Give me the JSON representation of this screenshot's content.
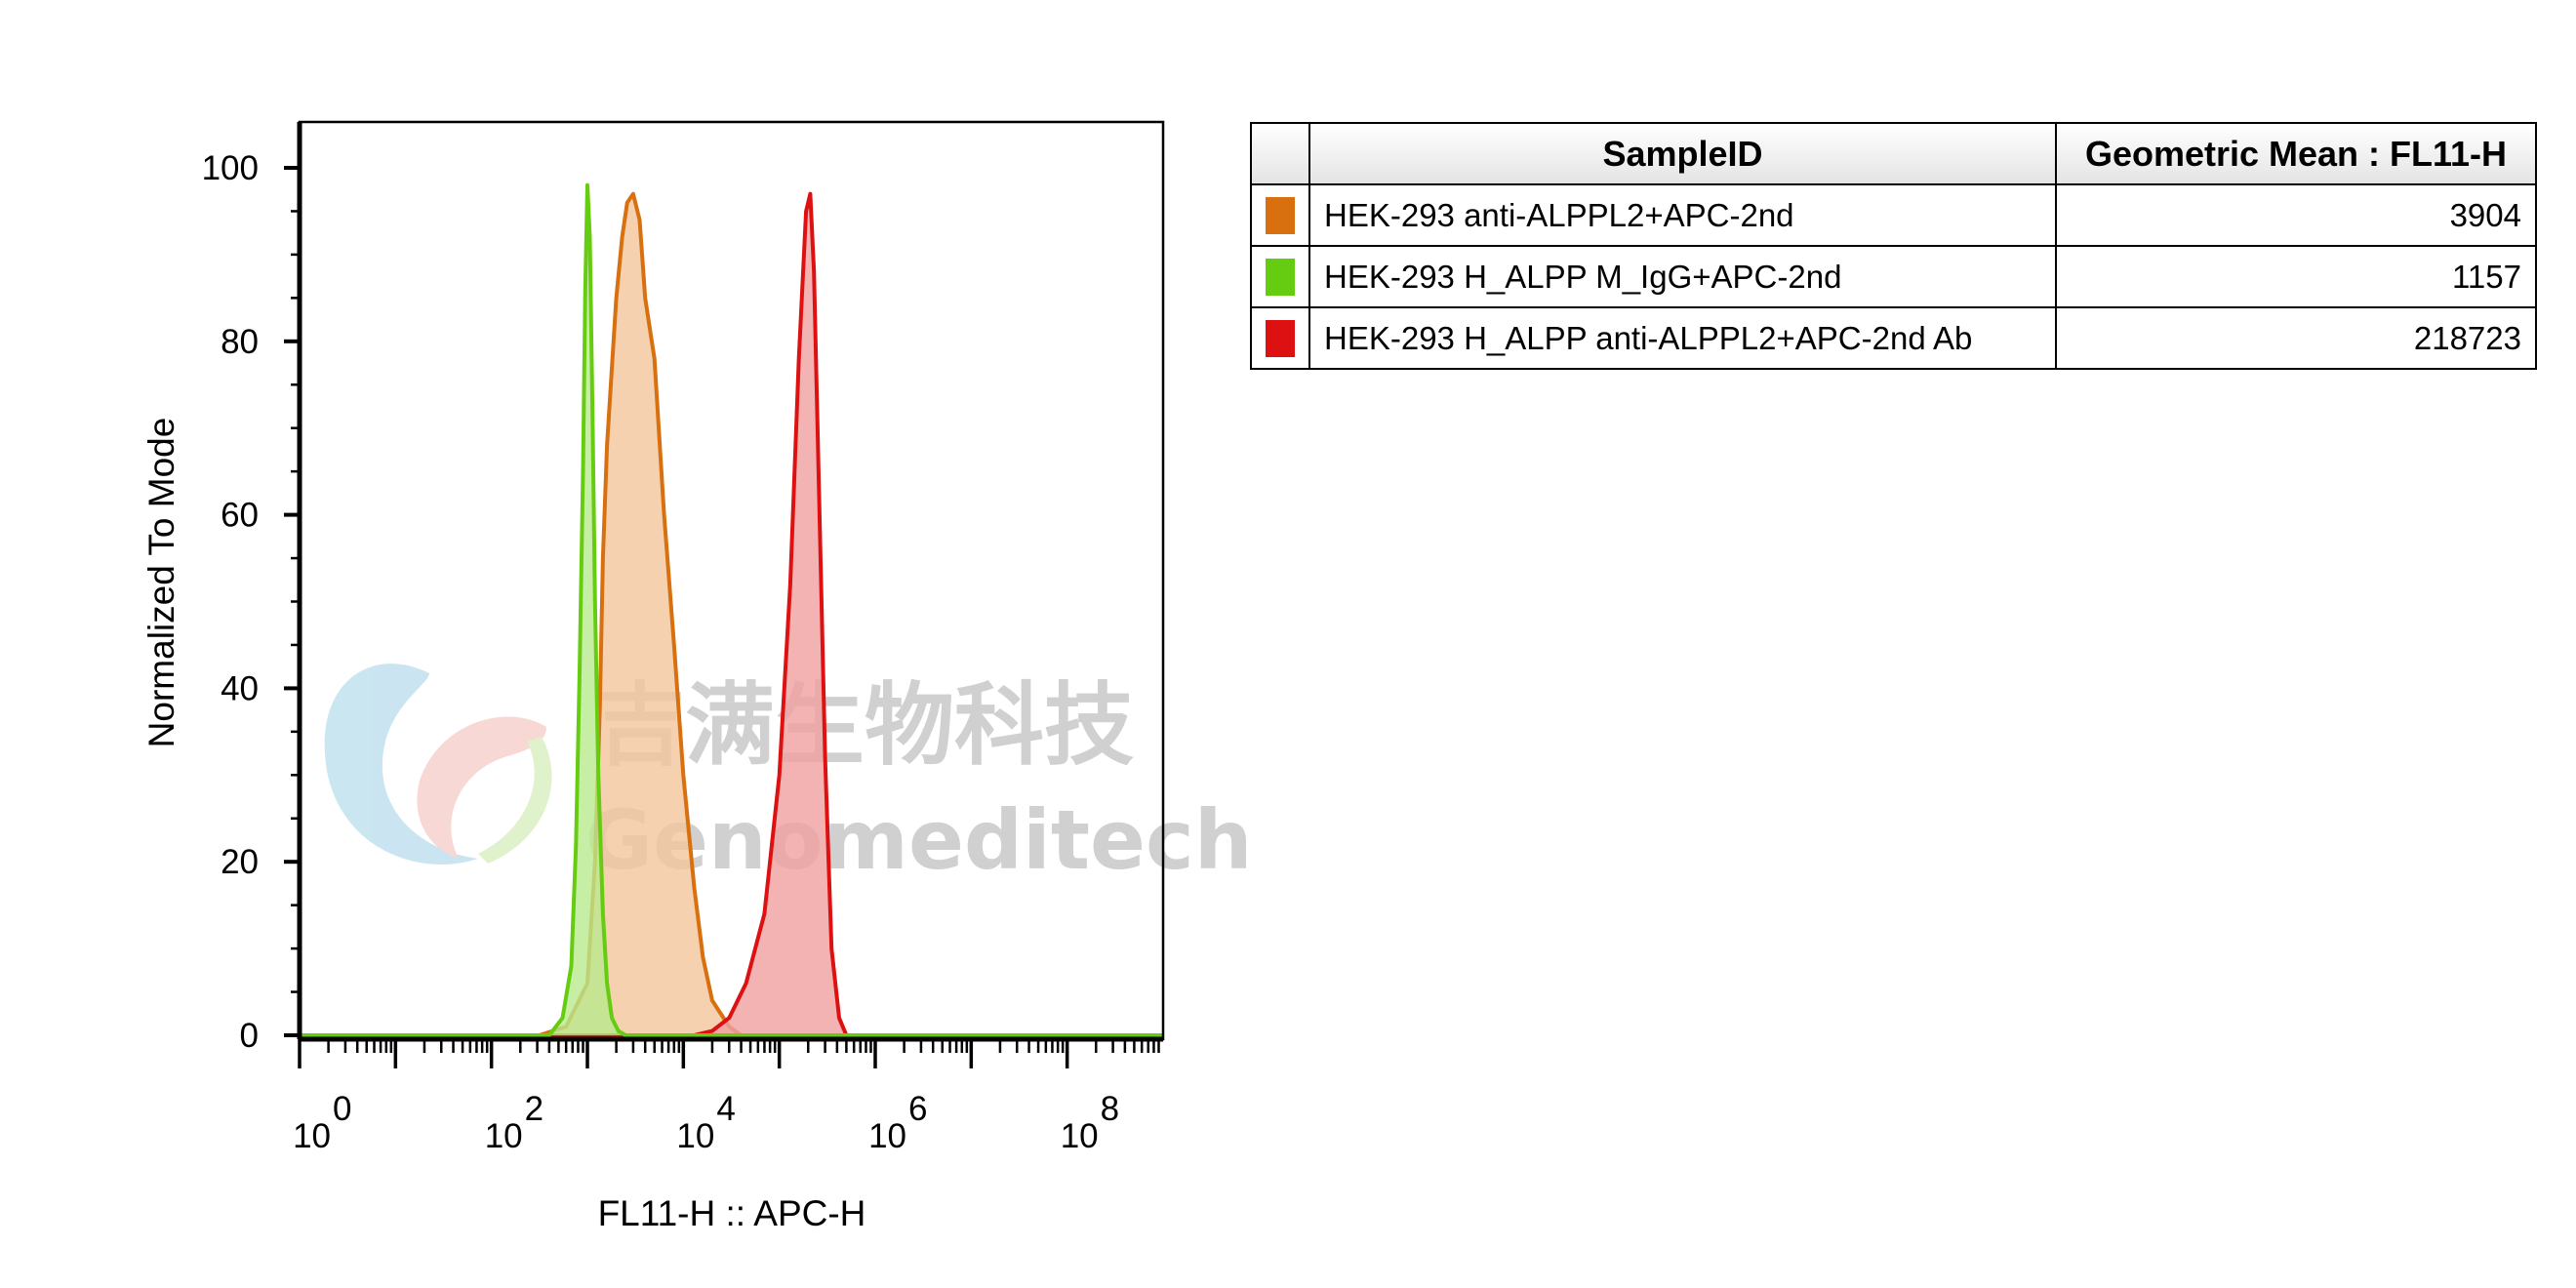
{
  "chart_data": {
    "type": "area",
    "xlabel": "FL11-H :: APC-H",
    "ylabel": "Normalized To Mode",
    "x_scale": "log",
    "xlim": [
      1,
      1000000000
    ],
    "ylim": [
      0,
      100
    ],
    "x_ticks": [
      {
        "base": "10",
        "exp": "0"
      },
      {
        "base": "10",
        "exp": "2"
      },
      {
        "base": "10",
        "exp": "4"
      },
      {
        "base": "10",
        "exp": "6"
      },
      {
        "base": "10",
        "exp": "8"
      }
    ],
    "y_ticks": [
      0,
      20,
      40,
      60,
      80,
      100
    ],
    "grid": false,
    "legend_placement": "right",
    "legend_headers": [
      "SampleID",
      "Geometric Mean : FL11-H"
    ],
    "series": [
      {
        "name": "HEK-293 anti-ALPPL2+APC-2nd",
        "geometric_mean": "3904",
        "color": "#d8700f",
        "fill": "#f2c59c",
        "x": [
          1,
          316,
          600,
          1000,
          1200,
          1350,
          1450,
          1600,
          1800,
          2000,
          2300,
          2600,
          3000,
          3500,
          4000,
          5000,
          6300,
          8000,
          10000,
          13000,
          16000,
          20000,
          30000,
          40000,
          1000000000
        ],
        "y": [
          0,
          0,
          1,
          6,
          20,
          38,
          55,
          68,
          77,
          85,
          92,
          96,
          97,
          94,
          85,
          78,
          60,
          45,
          30,
          17,
          9,
          4,
          1,
          0,
          0
        ]
      },
      {
        "name": "HEK-293 H_ALPP M_IgG+APC-2nd",
        "geometric_mean": "1157",
        "color": "#66cc11",
        "fill": "#b9ea8e",
        "x": [
          1,
          400,
          550,
          680,
          760,
          830,
          900,
          950,
          1000,
          1060,
          1130,
          1200,
          1300,
          1450,
          1600,
          1800,
          2100,
          2500,
          1000000000
        ],
        "y": [
          0,
          0,
          2,
          8,
          22,
          42,
          65,
          86,
          98,
          92,
          72,
          50,
          30,
          14,
          6,
          2,
          0.5,
          0,
          0
        ]
      },
      {
        "name": "HEK-293 H_ALPP anti-ALPPL2+APC-2nd Ab",
        "geometric_mean": "218723",
        "color": "#dd1111",
        "fill": "#f0a0a0",
        "x": [
          1,
          13000,
          20000,
          30000,
          45000,
          70000,
          100000,
          130000,
          160000,
          190000,
          210000,
          230000,
          260000,
          300000,
          350000,
          420000,
          500000,
          1000000000
        ],
        "y": [
          0,
          0,
          0.5,
          2,
          6,
          14,
          30,
          52,
          78,
          95,
          97,
          88,
          62,
          32,
          10,
          2,
          0,
          0
        ]
      }
    ]
  },
  "watermark": {
    "chinese": "吉满生物科技",
    "latin": "Genomeditech"
  }
}
